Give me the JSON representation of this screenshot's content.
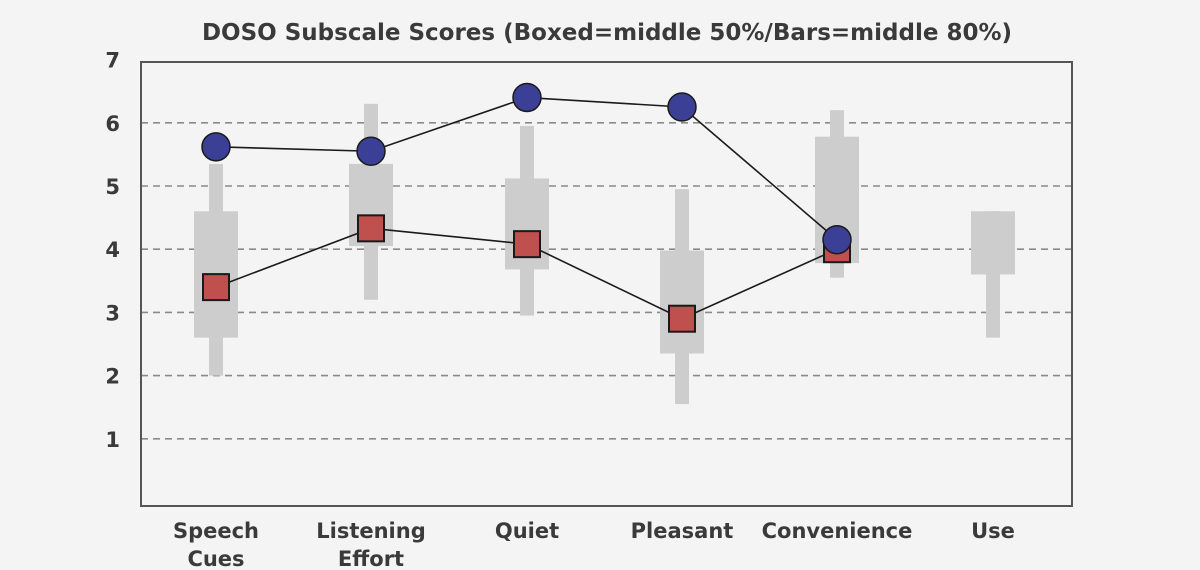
{
  "chart_data": {
    "type": "box-line",
    "title": "DOSO Subscale Scores (Boxed=middle 50%/Bars=middle 80%)",
    "ylim": [
      0,
      7
    ],
    "yticks": [
      1,
      2,
      3,
      4,
      5,
      6,
      7
    ],
    "grid": "horizontal-dashed",
    "categories": [
      [
        "Speech",
        "Cues"
      ],
      [
        "Listening",
        "Effort"
      ],
      [
        "Quiet"
      ],
      [
        "Pleasant"
      ],
      [
        "Convenience"
      ],
      [
        "Use"
      ]
    ],
    "distribution": [
      {
        "p10": 2.0,
        "q1": 2.6,
        "q3": 4.6,
        "p90": 5.35
      },
      {
        "p10": 3.2,
        "q1": 4.05,
        "q3": 5.35,
        "p90": 6.3
      },
      {
        "p10": 2.95,
        "q1": 3.68,
        "q3": 5.12,
        "p90": 5.95
      },
      {
        "p10": 1.55,
        "q1": 2.35,
        "q3": 3.98,
        "p90": 4.95
      },
      {
        "p10": 3.55,
        "q1": 3.78,
        "q3": 5.78,
        "p90": 6.2
      },
      {
        "p10": 2.6,
        "q1": 3.6,
        "q3": 4.6,
        "p90": 4.6
      }
    ],
    "series": [
      {
        "marker": "circle",
        "color": "#3b3f96",
        "values": [
          5.62,
          5.55,
          6.4,
          6.25,
          4.15,
          null
        ]
      },
      {
        "marker": "square",
        "color": "#c0504d",
        "values": [
          3.4,
          4.33,
          4.08,
          2.9,
          4.0,
          null
        ]
      }
    ],
    "colors": {
      "box": "#cdcdcd",
      "line": "#1a1a1a",
      "grid": "#8a8a8a",
      "frame": "#555555",
      "text": "#3a3a3a"
    }
  }
}
